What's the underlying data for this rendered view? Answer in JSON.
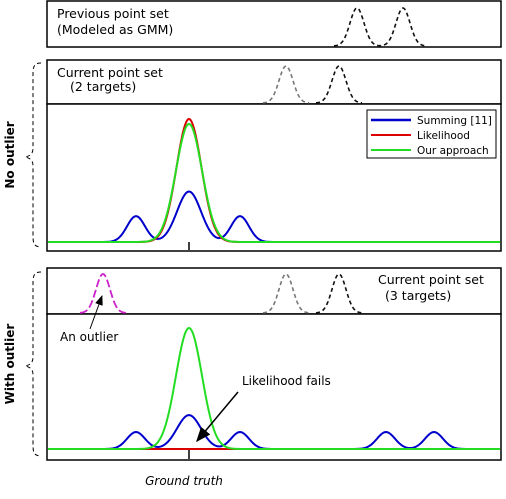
{
  "chart_data": [
    {
      "type": "line",
      "panel": "previous-point-set",
      "annotation_lines": [
        "Previous point set",
        "(Modeled as GMM)"
      ],
      "series": [
        {
          "style": "black dashed",
          "components": [
            {
              "center": 357,
              "width": 7,
              "height": 1.0
            },
            {
              "center": 403,
              "width": 7,
              "height": 1.0
            }
          ]
        }
      ]
    },
    {
      "type": "line",
      "panel": "no-outlier-current",
      "annotation_lines": [
        "Current point set",
        "(2 targets)"
      ],
      "series": [
        {
          "style": "gray dashed",
          "components": [
            {
              "center": 286,
              "width": 7,
              "height": 1.0
            }
          ]
        },
        {
          "style": "black dashed",
          "components": [
            {
              "center": 339,
              "width": 7,
              "height": 1.0
            }
          ]
        }
      ]
    },
    {
      "type": "line",
      "panel": "no-outlier-comparison",
      "group_label": "No outlier",
      "x_tick": 189,
      "legend": {
        "position": "top-right",
        "entries": [
          "Summing [11]",
          "Likelihood",
          "Our approach"
        ]
      },
      "series": [
        {
          "name": "Summing [11]",
          "color": "#0000cc",
          "components": [
            {
              "center": 189,
              "width": 12,
              "height": 0.41
            },
            {
              "center": 136,
              "width": 9,
              "height": 0.21
            },
            {
              "center": 240,
              "width": 9,
              "height": 0.21
            }
          ]
        },
        {
          "name": "Likelihood",
          "color": "#dd0000",
          "components": [
            {
              "center": 189,
              "width": 12.5,
              "height": 1.0
            }
          ]
        },
        {
          "name": "Our approach",
          "color": "#22dd22",
          "components": [
            {
              "center": 189,
              "width": 13,
              "height": 0.96
            }
          ]
        }
      ]
    },
    {
      "type": "line",
      "panel": "with-outlier-current",
      "annotation_lines": [
        "Current point set",
        "(3 targets)"
      ],
      "series": [
        {
          "style": "magenta dashed",
          "components": [
            {
              "center": 103,
              "width": 7,
              "height": 1.0
            }
          ]
        },
        {
          "style": "gray dashed",
          "components": [
            {
              "center": 286,
              "width": 7,
              "height": 1.0
            }
          ]
        },
        {
          "style": "black dashed",
          "components": [
            {
              "center": 339,
              "width": 7,
              "height": 1.0
            }
          ]
        }
      ]
    },
    {
      "type": "line",
      "panel": "with-outlier-comparison",
      "group_label": "With outlier",
      "x_tick": 189,
      "x_label": "Ground truth",
      "annotations": [
        "An outlier",
        "Likelihood fails"
      ],
      "series": [
        {
          "name": "Summing [11]",
          "color": "#0000cc",
          "components": [
            {
              "center": 189,
              "width": 12,
              "height": 0.28
            },
            {
              "center": 136,
              "width": 9,
              "height": 0.14
            },
            {
              "center": 240,
              "width": 9,
              "height": 0.14
            },
            {
              "center": 386,
              "width": 9,
              "height": 0.14
            },
            {
              "center": 434,
              "width": 9,
              "height": 0.14
            }
          ]
        },
        {
          "name": "Likelihood",
          "color": "#dd0000",
          "components": [
            {
              "center": 189,
              "width": 12,
              "height": 0.0
            }
          ]
        },
        {
          "name": "Our approach",
          "color": "#22dd22",
          "components": [
            {
              "center": 189,
              "width": 13,
              "height": 1.0
            }
          ]
        }
      ]
    }
  ]
}
